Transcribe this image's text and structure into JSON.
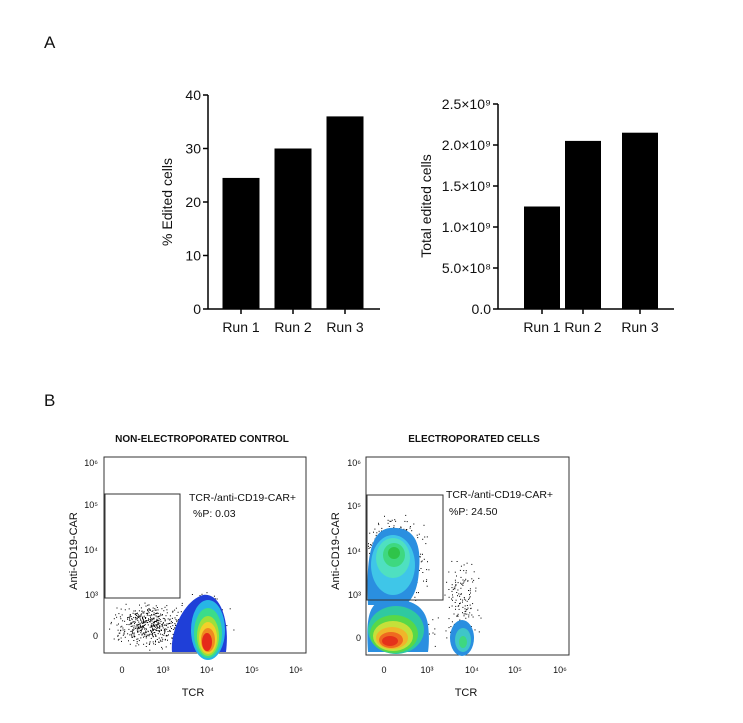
{
  "panels": {
    "a_label": "A",
    "b_label": "B"
  },
  "chart_data": [
    {
      "type": "bar",
      "categories": [
        "Run 1",
        "Run 2",
        "Run 3"
      ],
      "values": [
        24.5,
        30,
        36
      ],
      "xlabel": "",
      "ylabel": "% Edited cells",
      "ylim": [
        0,
        40
      ],
      "yticks": [
        "0",
        "10",
        "20",
        "30",
        "40"
      ],
      "bar_color": "#000000"
    },
    {
      "type": "bar",
      "categories": [
        "Run 1",
        "Run 2",
        "Run 3"
      ],
      "values": [
        1250000000,
        2050000000,
        2150000000
      ],
      "xlabel": "",
      "ylabel": "Total edited cells",
      "ylim": [
        0,
        2500000000
      ],
      "yticks": [
        "0.0",
        "5.0×10⁸",
        "1.0×10⁹",
        "1.5×10⁹",
        "2.0×10⁹",
        "2.5×10⁹"
      ],
      "bar_color": "#000000"
    },
    {
      "type": "scatter",
      "title": "NON-ELECTROPORATED CONTROL",
      "xlabel": "TCR",
      "ylabel": "Anti-CD19-CAR",
      "xticks": [
        "0",
        "10³",
        "10⁴",
        "10⁵",
        "10⁶"
      ],
      "yticks": [
        "0",
        "10³",
        "10⁴",
        "10⁵",
        "10⁶"
      ],
      "gate": {
        "name": "TCR-/anti-CD19-CAR+",
        "percent_label": "%P: 0.03"
      }
    },
    {
      "type": "scatter",
      "title": "ELECTROPORATED CELLS",
      "xlabel": "TCR",
      "ylabel": "Anti-CD19-CAR",
      "xticks": [
        "0",
        "10³",
        "10⁴",
        "10⁵",
        "10⁶"
      ],
      "yticks": [
        "0",
        "10³",
        "10⁴",
        "10⁵",
        "10⁶"
      ],
      "gate": {
        "name": "TCR-/anti-CD19-CAR+",
        "percent_label": "%P: 24.50"
      }
    }
  ]
}
